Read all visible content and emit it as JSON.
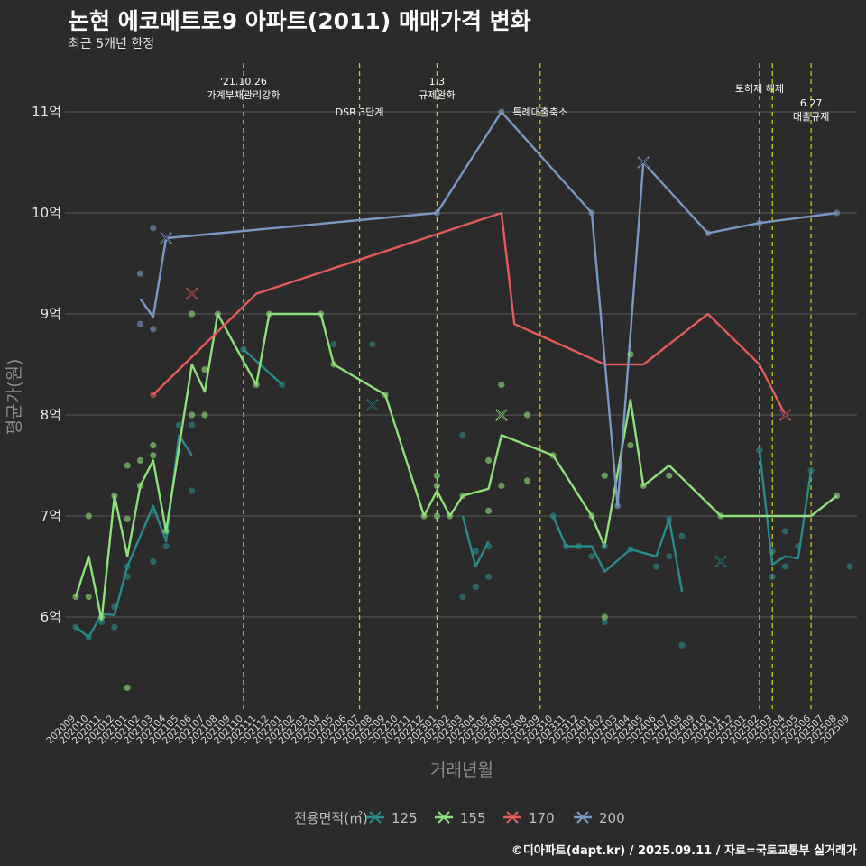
{
  "chart_data": {
    "type": "line",
    "title": "논현 에코메트로9 아파트(2011) 매매가격 변화",
    "subtitle": "최근 5개년 한정",
    "xlabel": "거래년월",
    "ylabel": "평균가(원)",
    "caption": "©디아파트(dapt.kr) / 2025.09.11 / 자료=국토교통부 실거래가",
    "legend_title": "전용면적(㎡)",
    "ylim": [
      4.95,
      11.6
    ],
    "yticks": [
      6,
      7,
      8,
      9,
      10,
      11
    ],
    "ytick_labels": [
      "6억",
      "7억",
      "8억",
      "9억",
      "10억",
      "11억"
    ],
    "x_months": [
      "202009",
      "202010",
      "202011",
      "202012",
      "202101",
      "202102",
      "202103",
      "202104",
      "202105",
      "202106",
      "202107",
      "202108",
      "202109",
      "202110",
      "202111",
      "202112",
      "202201",
      "202202",
      "202203",
      "202204",
      "202205",
      "202206",
      "202207",
      "202208",
      "202209",
      "202210",
      "202211",
      "202212",
      "202301",
      "202302",
      "202303",
      "202304",
      "202305",
      "202306",
      "202307",
      "202308",
      "202309",
      "202310",
      "202311",
      "202312",
      "202401",
      "202402",
      "202403",
      "202404",
      "202405",
      "202406",
      "202407",
      "202408",
      "202409",
      "202410",
      "202411",
      "202412",
      "202501",
      "202502",
      "202503",
      "202504",
      "202505",
      "202506",
      "202507",
      "202508",
      "202509"
    ],
    "events": [
      {
        "month_index": 13,
        "lines": [
          "'21.10.26",
          "가계부채관리강화"
        ],
        "row": 0
      },
      {
        "month_index": 22,
        "lines": [
          "DSR 3단계"
        ],
        "row": 2
      },
      {
        "month_index": 28,
        "lines": [
          "1.3",
          "규제완화"
        ],
        "row": 0
      },
      {
        "month_index": 36,
        "lines": [
          "특례대출축소"
        ],
        "row": 2
      },
      {
        "month_index": 53,
        "lines": [
          "토허제 해제"
        ],
        "row": 1
      },
      {
        "month_index": 54,
        "lines": [],
        "row": 1
      },
      {
        "month_index": 57,
        "lines": [
          "6.27",
          "대출규제"
        ],
        "row": 3
      }
    ],
    "series": [
      {
        "name": "125",
        "color": "#2a8a8a",
        "line": [
          [
            0,
            5.9
          ],
          [
            1,
            5.8
          ],
          [
            2,
            6.03
          ],
          [
            3,
            6.02
          ],
          [
            4,
            6.5
          ],
          [
            6,
            7.1
          ],
          [
            7,
            6.75
          ],
          [
            8,
            7.8
          ],
          [
            9,
            7.6
          ],
          [
            null,
            null
          ],
          [
            13,
            8.65
          ],
          [
            16,
            8.3
          ],
          [
            null,
            null
          ],
          [
            30,
            7.0
          ],
          [
            31,
            6.5
          ],
          [
            32,
            6.75
          ],
          [
            null,
            null
          ],
          [
            37,
            7.0
          ],
          [
            38,
            6.7
          ],
          [
            39,
            6.7
          ],
          [
            40,
            6.7
          ],
          [
            41,
            6.45
          ],
          [
            43,
            6.67
          ],
          [
            45,
            6.6
          ],
          [
            46,
            6.97
          ],
          [
            47,
            6.25
          ],
          [
            null,
            null
          ],
          [
            53,
            7.65
          ],
          [
            54,
            6.52
          ],
          [
            55,
            6.6
          ],
          [
            56,
            6.58
          ],
          [
            57,
            7.45
          ]
        ],
        "points": [
          [
            0,
            5.9
          ],
          [
            1,
            5.8
          ],
          [
            2,
            5.95
          ],
          [
            3,
            5.9
          ],
          [
            3,
            6.1
          ],
          [
            4,
            6.4
          ],
          [
            4,
            6.5
          ],
          [
            6,
            6.55
          ],
          [
            6,
            7.05
          ],
          [
            7,
            6.7
          ],
          [
            8,
            7.9
          ],
          [
            9,
            7.9
          ],
          [
            9,
            7.25
          ],
          [
            13,
            8.65
          ],
          [
            16,
            8.3
          ],
          [
            20,
            8.7
          ],
          [
            23,
            8.7
          ],
          [
            30,
            7.8
          ],
          [
            30,
            6.2
          ],
          [
            31,
            6.3
          ],
          [
            31,
            6.65
          ],
          [
            32,
            6.4
          ],
          [
            32,
            6.7
          ],
          [
            37,
            7.0
          ],
          [
            38,
            6.7
          ],
          [
            39,
            6.7
          ],
          [
            40,
            6.6
          ],
          [
            41,
            6.7
          ],
          [
            41,
            5.95
          ],
          [
            43,
            6.67
          ],
          [
            45,
            6.5
          ],
          [
            46,
            6.97
          ],
          [
            46,
            6.6
          ],
          [
            47,
            6.8
          ],
          [
            47,
            5.72
          ],
          [
            53,
            7.65
          ],
          [
            54,
            6.4
          ],
          [
            54,
            6.65
          ],
          [
            55,
            6.85
          ],
          [
            55,
            6.5
          ],
          [
            56,
            6.7
          ],
          [
            57,
            7.45
          ],
          [
            60,
            6.5
          ]
        ],
        "x_marks": [
          [
            23,
            8.1
          ],
          [
            50,
            6.55
          ]
        ]
      },
      {
        "name": "155",
        "color": "#8fe07a",
        "line": [
          [
            0,
            6.2
          ],
          [
            1,
            6.6
          ],
          [
            2,
            5.97
          ],
          [
            3,
            7.2
          ],
          [
            4,
            6.6
          ],
          [
            5,
            7.3
          ],
          [
            6,
            7.55
          ],
          [
            7,
            6.85
          ],
          [
            9,
            8.5
          ],
          [
            10,
            8.23
          ],
          [
            11,
            9.0
          ],
          [
            14,
            8.3
          ],
          [
            15,
            9.0
          ],
          [
            19,
            9.0
          ],
          [
            20,
            8.5
          ],
          [
            24,
            8.2
          ],
          [
            27,
            7.0
          ],
          [
            28,
            7.25
          ],
          [
            29,
            7.0
          ],
          [
            30,
            7.2
          ],
          [
            32,
            7.27
          ],
          [
            33,
            7.8
          ],
          [
            35,
            7.7
          ],
          [
            37,
            7.6
          ],
          [
            40,
            7.0
          ],
          [
            41,
            6.7
          ],
          [
            43,
            8.15
          ],
          [
            44,
            7.3
          ],
          [
            46,
            7.5
          ],
          [
            50,
            7.0
          ],
          [
            57,
            7.0
          ],
          [
            59,
            7.2
          ]
        ],
        "points": [
          [
            0,
            6.2
          ],
          [
            1,
            6.2
          ],
          [
            1,
            7.0
          ],
          [
            2,
            6.0
          ],
          [
            3,
            7.2
          ],
          [
            4,
            6.97
          ],
          [
            4,
            7.5
          ],
          [
            4,
            5.3
          ],
          [
            5,
            7.3
          ],
          [
            5,
            7.55
          ],
          [
            6,
            7.7
          ],
          [
            6,
            7.6
          ],
          [
            7,
            6.85
          ],
          [
            9,
            8.0
          ],
          [
            9,
            9.0
          ],
          [
            10,
            8.45
          ],
          [
            10,
            8.0
          ],
          [
            11,
            9.0
          ],
          [
            14,
            8.3
          ],
          [
            15,
            9.0
          ],
          [
            19,
            9.0
          ],
          [
            20,
            8.5
          ],
          [
            24,
            8.2
          ],
          [
            27,
            7.0
          ],
          [
            28,
            7.4
          ],
          [
            28,
            7.3
          ],
          [
            28,
            7.0
          ],
          [
            29,
            7.0
          ],
          [
            30,
            7.2
          ],
          [
            32,
            7.55
          ],
          [
            32,
            7.05
          ],
          [
            33,
            8.3
          ],
          [
            33,
            7.3
          ],
          [
            35,
            8.0
          ],
          [
            35,
            7.35
          ],
          [
            37,
            7.6
          ],
          [
            40,
            7.0
          ],
          [
            41,
            7.4
          ],
          [
            41,
            6.0
          ],
          [
            43,
            8.6
          ],
          [
            43,
            7.7
          ],
          [
            44,
            7.3
          ],
          [
            46,
            7.4
          ],
          [
            50,
            7.0
          ],
          [
            59,
            7.2
          ]
        ],
        "x_marks": [
          [
            33,
            8.0
          ]
        ]
      },
      {
        "name": "170",
        "color": "#e25c5c",
        "line": [
          [
            6,
            8.2
          ],
          [
            14,
            9.2
          ],
          [
            33,
            10.0
          ],
          [
            34,
            8.9
          ],
          [
            41,
            8.5
          ],
          [
            44,
            8.5
          ],
          [
            49,
            9.0
          ],
          [
            53,
            8.5
          ],
          [
            55,
            8.0
          ]
        ],
        "points": [
          [
            6,
            8.2
          ]
        ],
        "x_marks": [
          [
            9,
            9.2
          ],
          [
            55,
            8.0
          ]
        ]
      },
      {
        "name": "200",
        "color": "#7b98c2",
        "line": [
          [
            5,
            9.15
          ],
          [
            6,
            8.97
          ],
          [
            7,
            9.75
          ],
          [
            28,
            10.0
          ],
          [
            33,
            11.0
          ],
          [
            40,
            10.0
          ],
          [
            42,
            7.1
          ],
          [
            44,
            10.5
          ],
          [
            49,
            9.8
          ],
          [
            53,
            9.9
          ],
          [
            59,
            10.0
          ]
        ],
        "points": [
          [
            5,
            9.4
          ],
          [
            5,
            8.9
          ],
          [
            6,
            9.85
          ],
          [
            6,
            8.85
          ],
          [
            28,
            10.0
          ],
          [
            33,
            11.0
          ],
          [
            40,
            10.0
          ],
          [
            42,
            7.1
          ],
          [
            49,
            9.8
          ],
          [
            53,
            9.9
          ],
          [
            59,
            10.0
          ]
        ],
        "x_marks": [
          [
            7,
            9.75
          ],
          [
            44,
            10.5
          ]
        ]
      }
    ]
  }
}
